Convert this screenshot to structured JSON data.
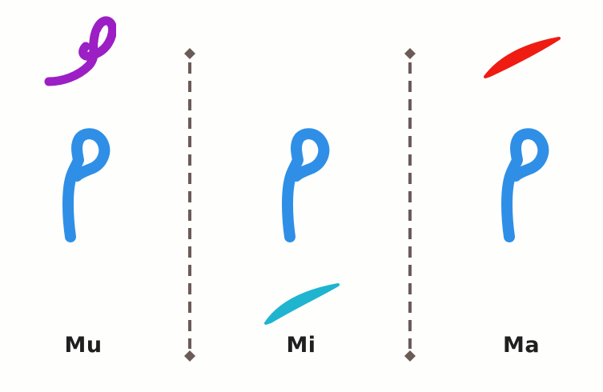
{
  "columns": [
    {
      "letter": "م",
      "harakah": "dammah",
      "label": "Mu"
    },
    {
      "letter": "م",
      "harakah": "kasrah",
      "label": "Mi"
    },
    {
      "letter": "م",
      "harakah": "fathah",
      "label": "Ma"
    }
  ],
  "colors": {
    "letter": "#2f8fe6",
    "dammah": "#9b1fc4",
    "kasrah": "#1fb4d0",
    "fathah": "#ee1c12",
    "divider": "#6b5b57",
    "label": "#1f1f1f"
  }
}
